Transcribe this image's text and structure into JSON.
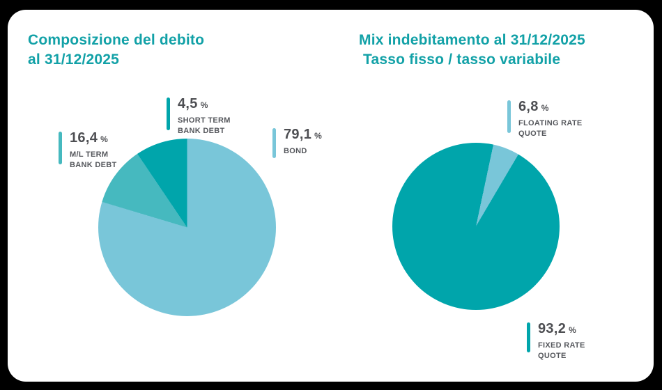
{
  "colors": {
    "background": "#000000",
    "card": "#ffffff",
    "title_text": "#12a1a7",
    "value_text": "#4e4f53",
    "label_text": "#55575c",
    "teal_dark": "#00a5ab",
    "teal_medium": "#46b9bf",
    "blue_light": "#79c6d9"
  },
  "left_chart": {
    "title_line1": "Composizione del debito",
    "title_line2": "al 31/12/2025",
    "callouts": {
      "short_term": {
        "value": "4,5",
        "suffix": "%",
        "line1": "SHORT TERM",
        "line2": "BANK DEBT"
      },
      "ml_term": {
        "value": "16,4",
        "suffix": "%",
        "line1": "M/L TERM",
        "line2": "BANK DEBT"
      },
      "bond": {
        "value": "79,1",
        "suffix": "%",
        "line1": "BOND"
      }
    }
  },
  "right_chart": {
    "title_line1": "Mix indebitamento al 31/12/2025",
    "title_line2": "Tasso fisso / tasso variabile",
    "callouts": {
      "floating": {
        "value": "6,8",
        "suffix": "%",
        "line1": "FLOATING RATE",
        "line2": "QUOTE"
      },
      "fixed": {
        "value": "93,2",
        "suffix": "%",
        "line1": "FIXED RATE",
        "line2": "QUOTE"
      }
    }
  },
  "chart_data": [
    {
      "type": "pie",
      "title": "Composizione del debito al 31/12/2025",
      "unit": "%",
      "legend_position": "callouts",
      "slices": [
        {
          "label": "BOND",
          "value": 79.1,
          "color": "#79c6d9"
        },
        {
          "label": "M/L TERM BANK DEBT",
          "value": 16.4,
          "color": "#46b9bf"
        },
        {
          "label": "SHORT TERM BANK DEBT",
          "value": 4.5,
          "color": "#00a5ab"
        }
      ],
      "display_segments": [
        {
          "color": "#79c6d9",
          "start": 0,
          "end": 286.7
        },
        {
          "color": "#46b9bf",
          "start": 286.7,
          "end": 326
        },
        {
          "color": "#00a5ab",
          "start": 326,
          "end": 360
        }
      ]
    },
    {
      "type": "pie",
      "title": "Mix indebitamento al 31/12/2025 Tasso fisso / tasso variabile",
      "unit": "%",
      "legend_position": "callouts",
      "slices": [
        {
          "label": "FIXED RATE QUOTE",
          "value": 93.2,
          "color": "#00a5ab"
        },
        {
          "label": "FLOATING RATE QUOTE",
          "value": 6.8,
          "color": "#79c6d9"
        }
      ],
      "display_segments": [
        {
          "color": "#00a5ab",
          "start": 0,
          "end": 12
        },
        {
          "color": "#79c6d9",
          "start": 12,
          "end": 30.5
        },
        {
          "color": "#00a5ab",
          "start": 30.5,
          "end": 360
        }
      ]
    }
  ]
}
